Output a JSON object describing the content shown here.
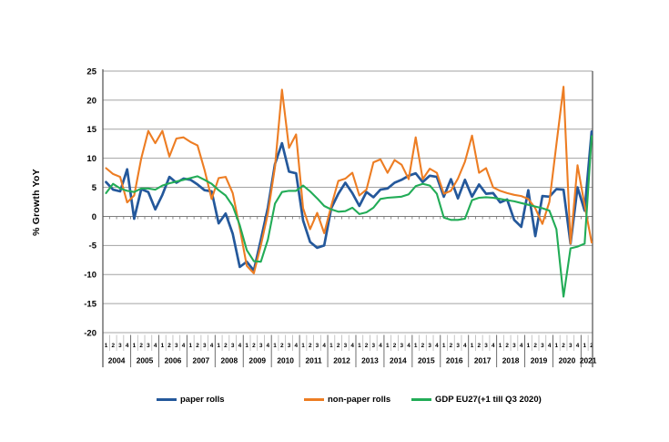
{
  "chart_data": {
    "type": "line",
    "title": "",
    "ylabel": "% Growth YoY",
    "xlabel": "",
    "ylim": [
      -20,
      25
    ],
    "yticks": [
      25,
      20,
      15,
      10,
      5,
      0,
      -5,
      -10,
      -15,
      -20
    ],
    "grid": true,
    "legend_position": "bottom",
    "years": [
      {
        "year": "2004",
        "quarters": [
          "1",
          "2",
          "3",
          "4"
        ]
      },
      {
        "year": "2005",
        "quarters": [
          "1",
          "2",
          "3",
          "4"
        ]
      },
      {
        "year": "2006",
        "quarters": [
          "1",
          "2",
          "3",
          "4"
        ]
      },
      {
        "year": "2007",
        "quarters": [
          "1",
          "2",
          "3",
          "4"
        ]
      },
      {
        "year": "2008",
        "quarters": [
          "1",
          "2",
          "3",
          "4"
        ]
      },
      {
        "year": "2009",
        "quarters": [
          "1",
          "2",
          "3",
          "4"
        ]
      },
      {
        "year": "2010",
        "quarters": [
          "1",
          "2",
          "3",
          "4"
        ]
      },
      {
        "year": "2011",
        "quarters": [
          "1",
          "2",
          "3",
          "4"
        ]
      },
      {
        "year": "2012",
        "quarters": [
          "1",
          "2",
          "3",
          "4"
        ]
      },
      {
        "year": "2013",
        "quarters": [
          "1",
          "2",
          "3",
          "4"
        ]
      },
      {
        "year": "2014",
        "quarters": [
          "1",
          "2",
          "3",
          "4"
        ]
      },
      {
        "year": "2015",
        "quarters": [
          "1",
          "2",
          "3",
          "4"
        ]
      },
      {
        "year": "2016",
        "quarters": [
          "1",
          "2",
          "3",
          "4"
        ]
      },
      {
        "year": "2017",
        "quarters": [
          "1",
          "2",
          "3",
          "4"
        ]
      },
      {
        "year": "2018",
        "quarters": [
          "1",
          "2",
          "3",
          "4"
        ]
      },
      {
        "year": "2019",
        "quarters": [
          "1",
          "2",
          "3",
          "4"
        ]
      },
      {
        "year": "2020",
        "quarters": [
          "1",
          "2",
          "3",
          "4"
        ]
      },
      {
        "year": "2021",
        "quarters": [
          "1",
          "2"
        ]
      }
    ],
    "series": [
      {
        "name": "paper rolls",
        "color": "#24589b",
        "width": 2.7,
        "values": [
          5.9,
          4.6,
          4.3,
          8.1,
          -0.4,
          4.7,
          4.2,
          1.2,
          3.7,
          6.8,
          5.8,
          6.5,
          6.3,
          5.5,
          4.5,
          4.3,
          -1.2,
          0.5,
          -3.0,
          -8.7,
          -7.8,
          -9.3,
          -4.0,
          1.5,
          9.0,
          12.6,
          7.7,
          7.4,
          -0.7,
          -4.4,
          -5.4,
          -5.0,
          1.4,
          3.9,
          5.8,
          4.0,
          1.8,
          4.2,
          3.3,
          4.6,
          4.8,
          5.8,
          6.3,
          7.0,
          7.4,
          5.9,
          7.0,
          6.8,
          3.4,
          6.4,
          3.1,
          6.3,
          3.4,
          5.5,
          3.9,
          4.0,
          2.4,
          2.9,
          -0.6,
          -1.8,
          4.5,
          -3.4,
          3.5,
          3.4,
          4.7,
          4.6,
          -4.7,
          5.0,
          1.0,
          14.6
        ]
      },
      {
        "name": "non-paper rolls",
        "color": "#ed7d23",
        "width": 2.1,
        "values": [
          8.3,
          7.3,
          6.8,
          2.4,
          3.6,
          10.0,
          14.7,
          12.6,
          14.7,
          10.3,
          13.4,
          13.6,
          12.8,
          12.2,
          8.0,
          3.0,
          6.6,
          6.8,
          4.0,
          -2.0,
          -8.5,
          -9.8,
          -5.0,
          0.5,
          8.5,
          21.8,
          11.8,
          14.1,
          1.4,
          -2.2,
          0.6,
          -2.9,
          1.8,
          6.1,
          6.5,
          7.5,
          3.6,
          4.6,
          9.3,
          9.8,
          7.5,
          9.7,
          8.9,
          6.4,
          13.6,
          6.4,
          8.2,
          7.5,
          3.9,
          4.4,
          6.5,
          9.4,
          13.9,
          7.5,
          8.3,
          5.0,
          4.4,
          4.0,
          3.7,
          3.5,
          3.0,
          1.4,
          -1.3,
          2.5,
          12.4,
          22.3,
          -4.7,
          8.8,
          1.9,
          -4.5
        ]
      },
      {
        "name": "GDP EU27(+1 till Q3 2020)",
        "color": "#22ac57",
        "width": 2.1,
        "values": [
          4.0,
          5.6,
          4.8,
          4.4,
          4.2,
          4.8,
          4.8,
          4.6,
          5.3,
          5.7,
          6.0,
          6.3,
          6.6,
          6.9,
          6.3,
          5.6,
          4.5,
          3.6,
          1.8,
          -1.5,
          -5.8,
          -7.7,
          -7.8,
          -4.0,
          2.2,
          4.2,
          4.4,
          4.4,
          5.3,
          4.3,
          3.1,
          1.8,
          1.2,
          0.8,
          0.9,
          1.5,
          0.4,
          0.7,
          1.5,
          3.0,
          3.2,
          3.3,
          3.4,
          3.8,
          5.2,
          5.6,
          5.3,
          3.9,
          -0.2,
          -0.6,
          -0.6,
          -0.4,
          2.8,
          3.2,
          3.3,
          3.2,
          3.0,
          2.8,
          2.6,
          2.3,
          2.0,
          1.7,
          1.4,
          1.0,
          -2.2,
          -13.8,
          -5.5,
          -5.2,
          -4.7,
          13.8
        ]
      }
    ]
  },
  "legend": {
    "items": [
      {
        "label": "paper rolls"
      },
      {
        "label": "non-paper rolls"
      },
      {
        "label": "GDP EU27(+1 till Q3 2020)"
      }
    ]
  },
  "colors": {
    "gridline": "#a3a3a3",
    "zero_axis": "#7f7f7f",
    "axis_line": "#4d4d4d",
    "quarter_separator": "#b8b8b8",
    "year_separator": "#6e6e6e",
    "text": "#000000"
  }
}
